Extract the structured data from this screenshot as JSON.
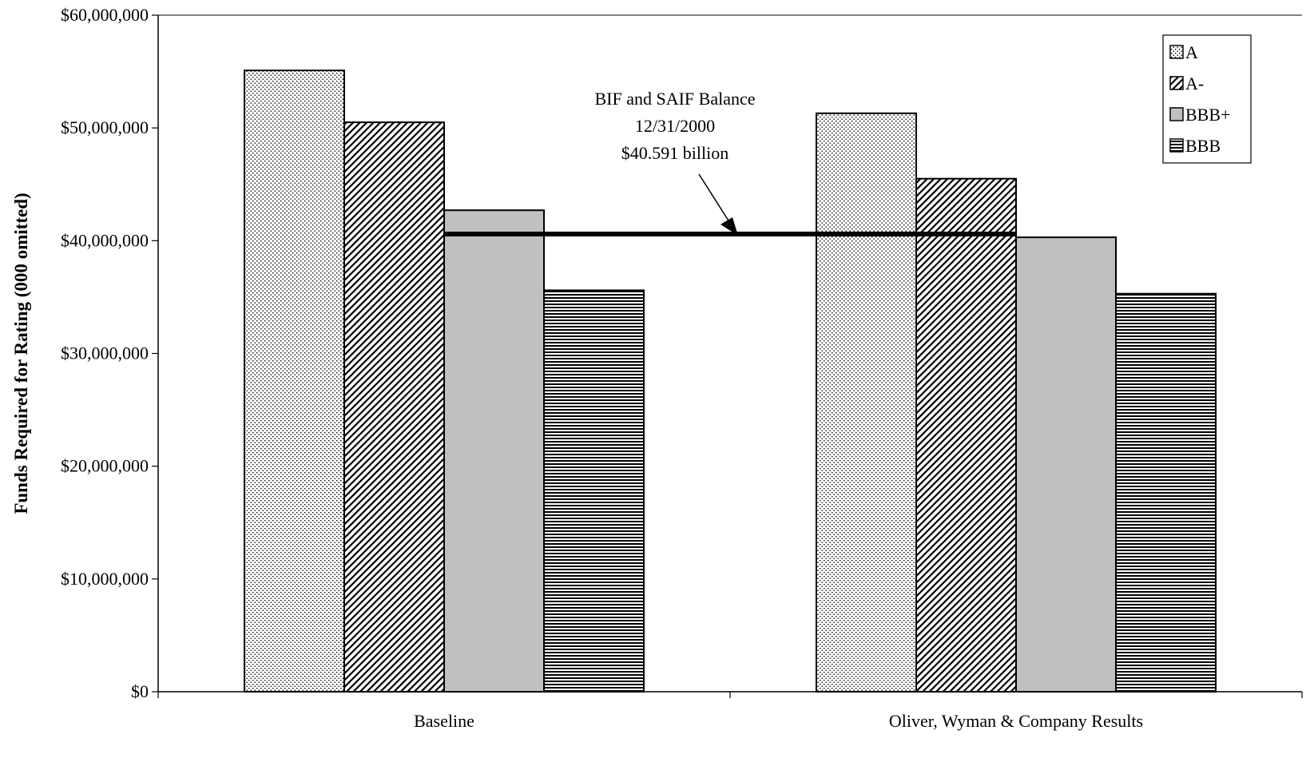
{
  "chart_data": {
    "type": "bar",
    "title": "",
    "xlabel": "",
    "ylabel": "Funds Required for Rating (000 omitted)",
    "categories": [
      "Baseline",
      "Oliver, Wyman & Company Results"
    ],
    "series": [
      {
        "name": "A",
        "values": [
          55100000,
          51300000
        ],
        "pattern": "dots"
      },
      {
        "name": "A-",
        "values": [
          50500000,
          45500000
        ],
        "pattern": "diagonal"
      },
      {
        "name": "BBB+",
        "values": [
          42700000,
          40300000
        ],
        "pattern": "solid-gray"
      },
      {
        "name": "BBB",
        "values": [
          35600000,
          35300000
        ],
        "pattern": "horizontal"
      }
    ],
    "ylim": [
      0,
      60000000
    ],
    "yticks": [
      0,
      10000000,
      20000000,
      30000000,
      40000000,
      50000000,
      60000000
    ],
    "ytick_labels": [
      "$0",
      "$10,000,000",
      "$20,000,000",
      "$30,000,000",
      "$40,000,000",
      "$50,000,000",
      "$60,000,000"
    ],
    "reference_line": {
      "value": 40591000
    },
    "annotation": {
      "lines": [
        "BIF and SAIF Balance",
        "12/31/2000",
        "$40.591 billion"
      ]
    },
    "legend": {
      "position": "top-right"
    },
    "grid": false,
    "colors": {
      "bar_fill": "#ffffff",
      "solid_gray": "#c0c0c0",
      "ink": "#000000"
    }
  }
}
